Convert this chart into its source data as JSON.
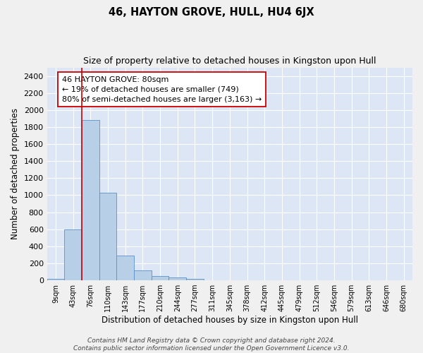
{
  "title": "46, HAYTON GROVE, HULL, HU4 6JX",
  "subtitle": "Size of property relative to detached houses in Kingston upon Hull",
  "xlabel": "Distribution of detached houses by size in Kingston upon Hull",
  "ylabel": "Number of detached properties",
  "bin_labels": [
    "9sqm",
    "43sqm",
    "76sqm",
    "110sqm",
    "143sqm",
    "177sqm",
    "210sqm",
    "244sqm",
    "277sqm",
    "311sqm",
    "345sqm",
    "378sqm",
    "412sqm",
    "445sqm",
    "479sqm",
    "512sqm",
    "546sqm",
    "579sqm",
    "613sqm",
    "646sqm",
    "680sqm"
  ],
  "bar_heights": [
    20,
    600,
    1880,
    1030,
    290,
    115,
    50,
    30,
    20,
    0,
    0,
    0,
    0,
    0,
    0,
    0,
    0,
    0,
    0,
    0,
    0
  ],
  "bar_color": "#b8cfe8",
  "bar_edge_color": "#5b8fc9",
  "fig_facecolor": "#f0f0f0",
  "ax_facecolor": "#dce6f5",
  "grid_color": "#ffffff",
  "annotation_line1": "46 HAYTON GROVE: 80sqm",
  "annotation_line2": "← 19% of detached houses are smaller (749)",
  "annotation_line3": "80% of semi-detached houses are larger (3,163) →",
  "annotation_box_facecolor": "#ffffff",
  "annotation_box_edgecolor": "#cc0000",
  "vline_color": "#cc0000",
  "vline_x_index": 2,
  "ylim": [
    0,
    2500
  ],
  "yticks": [
    0,
    200,
    400,
    600,
    800,
    1000,
    1200,
    1400,
    1600,
    1800,
    2000,
    2200,
    2400
  ],
  "footer_line1": "Contains HM Land Registry data © Crown copyright and database right 2024.",
  "footer_line2": "Contains public sector information licensed under the Open Government Licence v3.0.",
  "title_fontsize": 10.5,
  "subtitle_fontsize": 9,
  "xlabel_fontsize": 8.5,
  "ylabel_fontsize": 8.5,
  "ytick_fontsize": 8,
  "xtick_fontsize": 7,
  "annotation_fontsize": 8,
  "footer_fontsize": 6.5
}
